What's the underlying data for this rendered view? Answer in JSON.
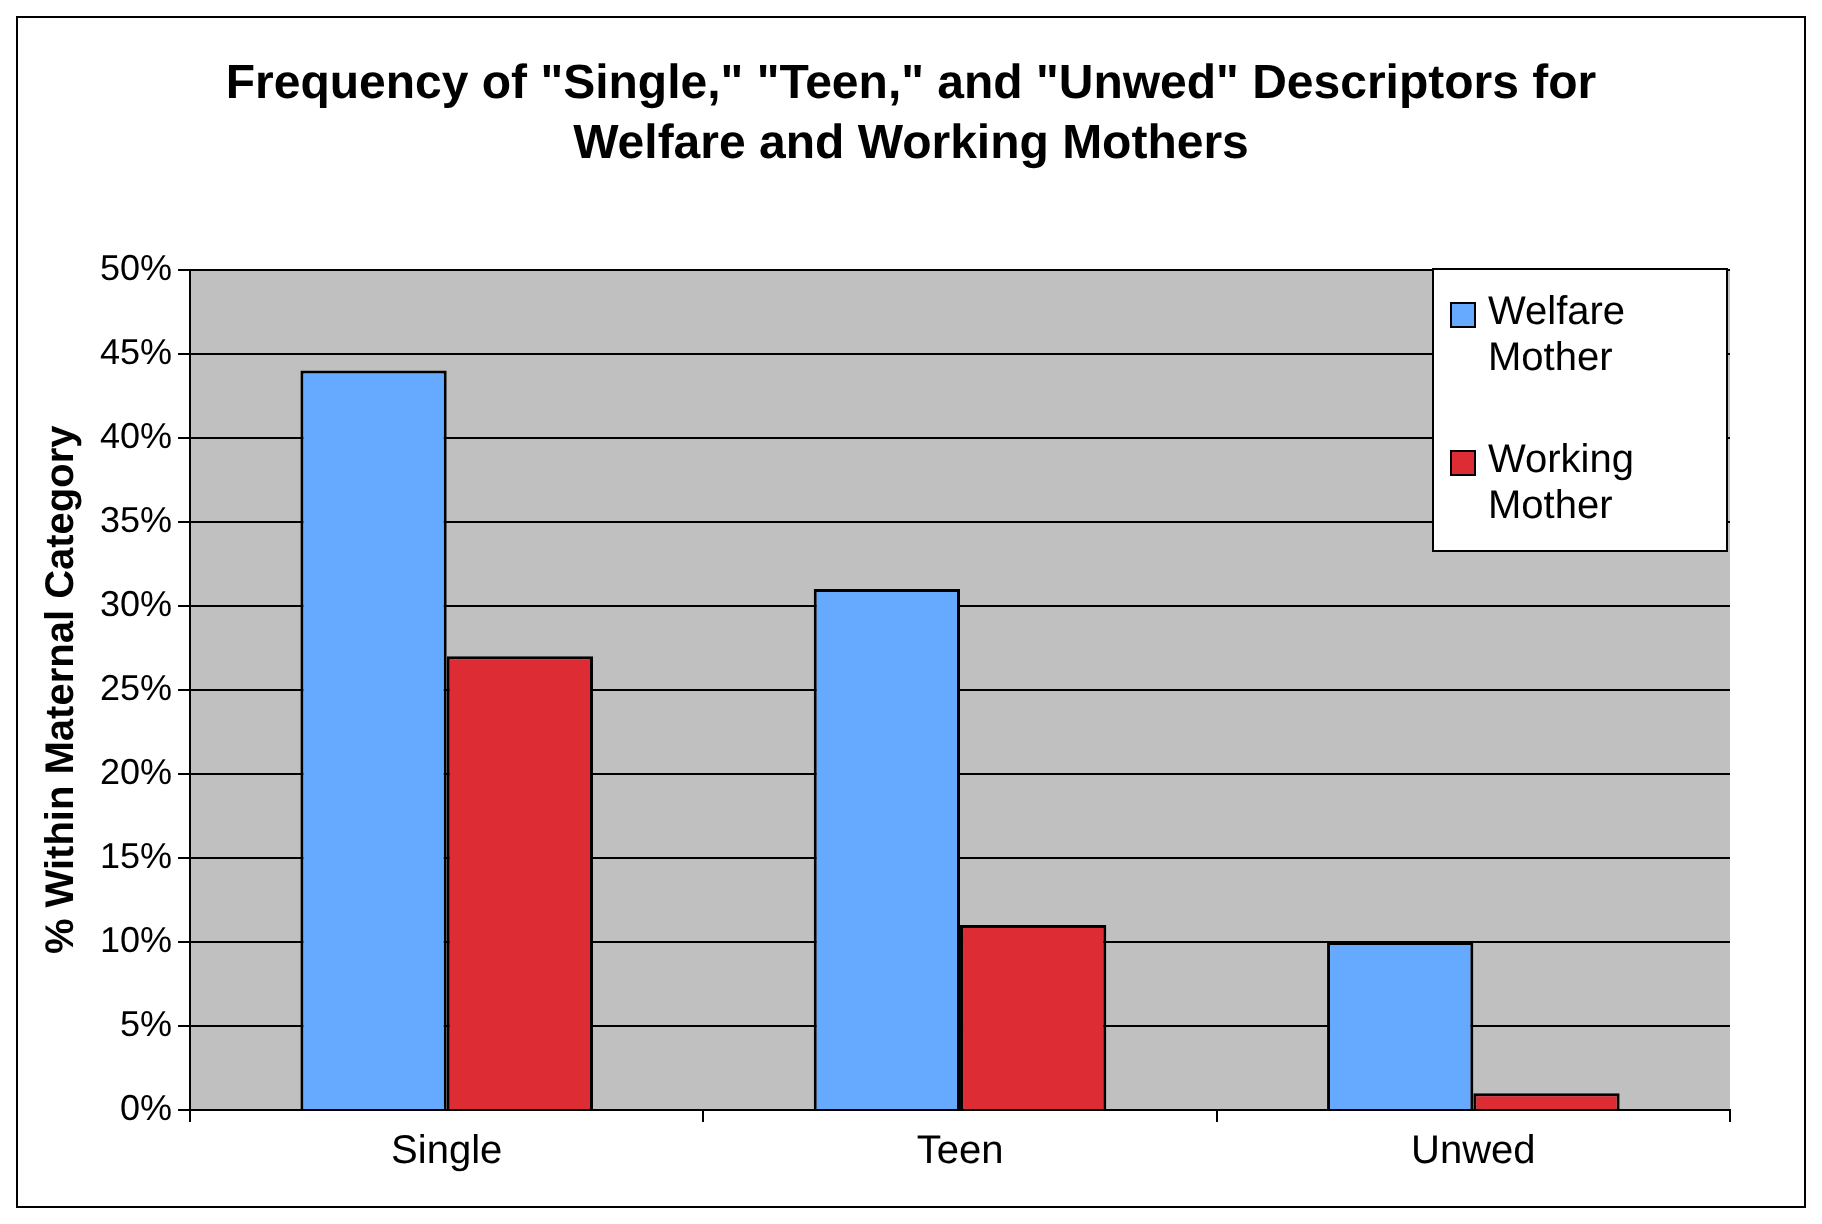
{
  "chart_data": {
    "type": "bar",
    "title": "Frequency of \"Single,\" \"Teen,\" and \"Unwed\" Descriptors for Welfare and Working Mothers",
    "ylabel": "% Within Maternal Category",
    "categories": [
      "Single",
      "Teen",
      "Unwed"
    ],
    "series": [
      {
        "name": "Welfare Mother",
        "color": "#66aaff",
        "values": [
          44,
          31,
          10
        ]
      },
      {
        "name": "Working Mother",
        "color": "#dd2c33",
        "values": [
          27,
          11,
          1
        ]
      }
    ],
    "ylim": [
      0,
      50
    ],
    "yticks": [
      {
        "value": 0,
        "label": "0%"
      },
      {
        "value": 5,
        "label": "5%"
      },
      {
        "value": 10,
        "label": "10%"
      },
      {
        "value": 15,
        "label": "15%"
      },
      {
        "value": 20,
        "label": "20%"
      },
      {
        "value": 25,
        "label": "25%"
      },
      {
        "value": 30,
        "label": "30%"
      },
      {
        "value": 35,
        "label": "35%"
      },
      {
        "value": 40,
        "label": "40%"
      },
      {
        "value": 45,
        "label": "45%"
      },
      {
        "value": 50,
        "label": "50%"
      }
    ],
    "grid": "y",
    "legend": "top right"
  }
}
